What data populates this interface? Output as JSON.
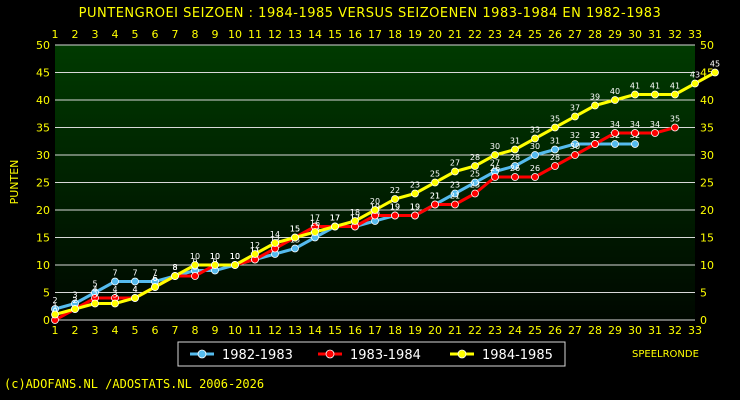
{
  "chart_data": {
    "type": "line",
    "title": "PUNTENGROEI  SEIZOEN : 1984-1985 VERSUS SEIZOENEN 1983-1984 EN 1982-1983",
    "ylabel": "PUNTEN",
    "xlabel": "SPEELRONDE",
    "xlim": [
      1,
      33
    ],
    "ylim": [
      0,
      50
    ],
    "x_ticks": [
      1,
      2,
      3,
      4,
      5,
      6,
      7,
      8,
      9,
      10,
      11,
      12,
      13,
      14,
      15,
      16,
      17,
      18,
      19,
      20,
      21,
      22,
      23,
      24,
      25,
      26,
      27,
      28,
      29,
      30,
      31,
      32,
      33
    ],
    "y_ticks": [
      0,
      5,
      10,
      15,
      20,
      25,
      30,
      35,
      40,
      45,
      50
    ],
    "grid": true,
    "legend_position": "bottom",
    "series": [
      {
        "name": "1982-1983",
        "color": "#55bbee",
        "values": [
          2,
          3,
          5,
          7,
          7,
          7,
          8,
          9,
          9,
          10,
          11,
          12,
          13,
          15,
          17,
          17,
          18,
          19,
          19,
          21,
          23,
          25,
          27,
          28,
          30,
          31,
          32,
          32,
          32,
          32
        ]
      },
      {
        "name": "1983-1984",
        "color": "#ff0000",
        "values": [
          0,
          2,
          4,
          4,
          4,
          6,
          8,
          8,
          10,
          10,
          11,
          13,
          15,
          17,
          17,
          17,
          19,
          19,
          19,
          21,
          21,
          23,
          26,
          26,
          26,
          28,
          30,
          32,
          34,
          34,
          34,
          35
        ]
      },
      {
        "name": "1984-1985",
        "color": "#ffff00",
        "values": [
          1,
          2,
          3,
          3,
          4,
          6,
          8,
          10,
          10,
          10,
          12,
          14,
          15,
          16,
          17,
          18,
          20,
          22,
          23,
          25,
          27,
          28,
          30,
          31,
          33,
          35,
          37,
          39,
          40,
          41,
          41,
          41,
          43,
          45
        ]
      }
    ]
  },
  "footer": {
    "credit": "(c)ADOFANS.NL /ADOSTATS.NL 2006-2026"
  }
}
